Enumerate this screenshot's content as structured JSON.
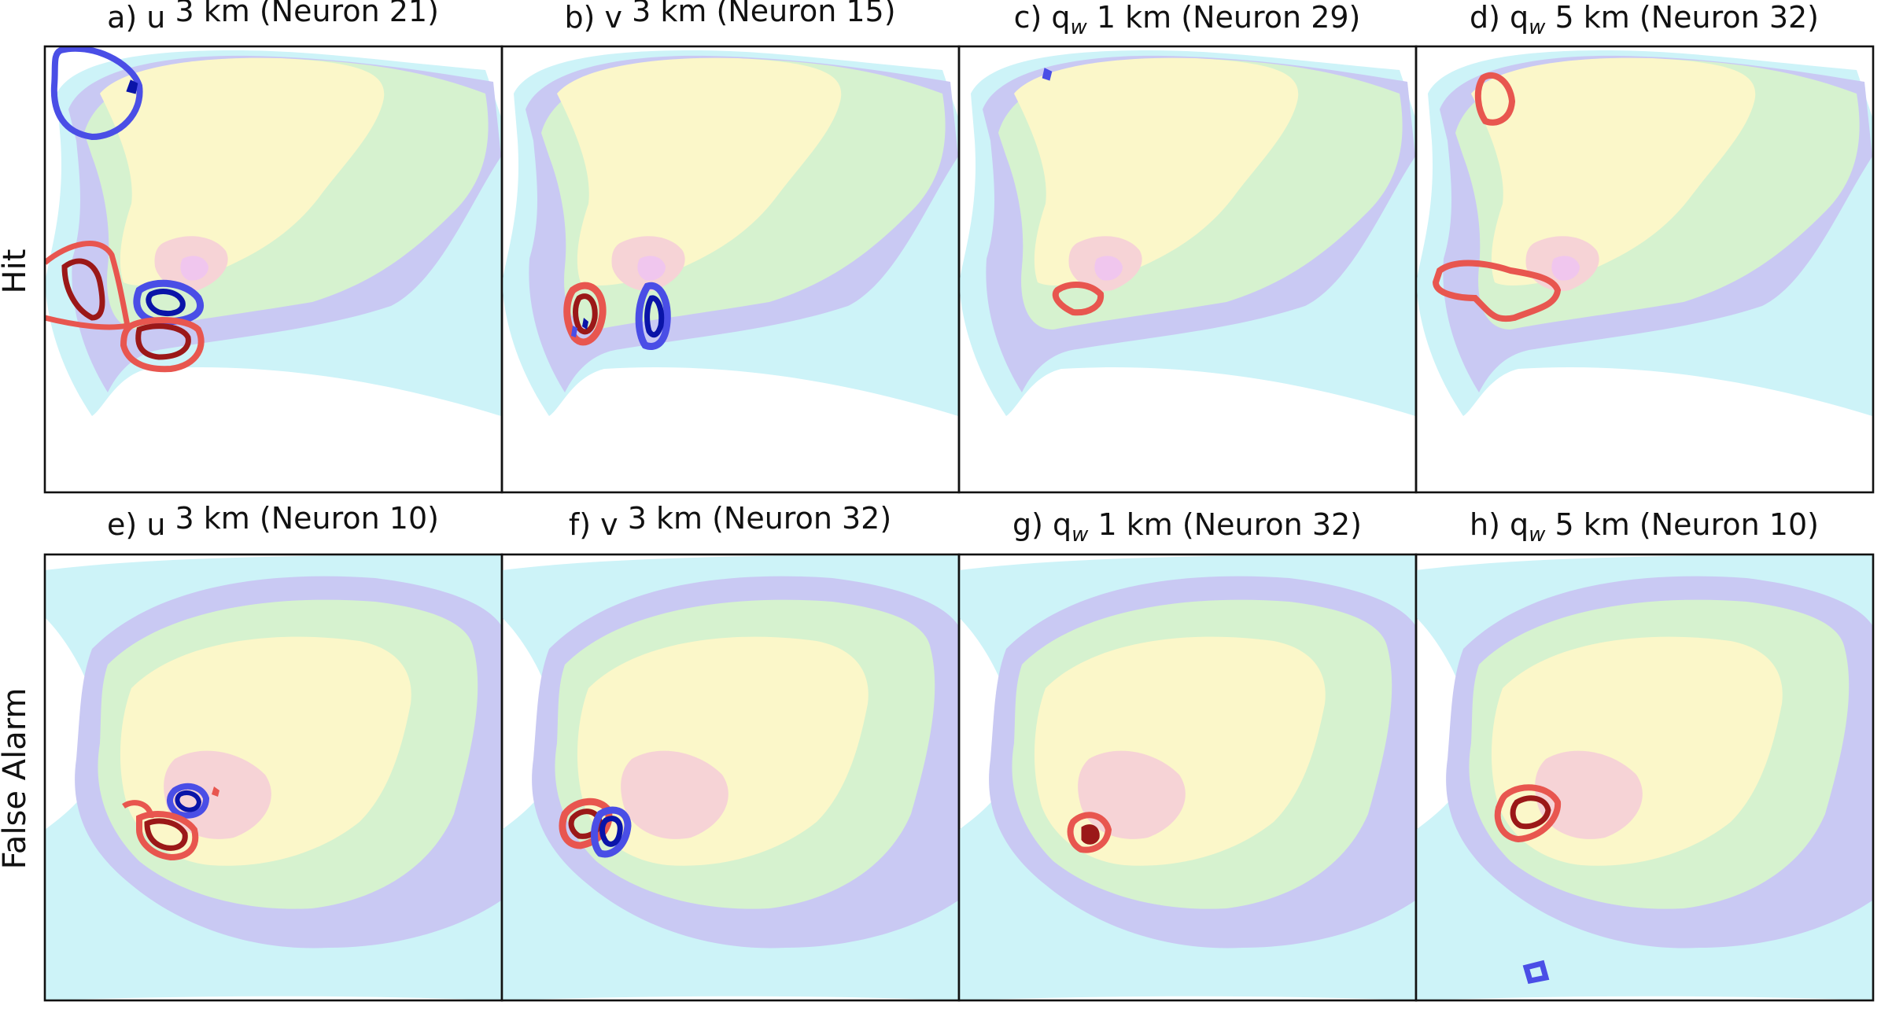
{
  "row_labels": [
    "Hit",
    "False Alarm"
  ],
  "panels": [
    {
      "id": "a",
      "letter": "a)",
      "quantity": "u",
      "subscript": "",
      "level": "3 km",
      "neuron": "(Neuron 21)",
      "case": "hit"
    },
    {
      "id": "b",
      "letter": "b)",
      "quantity": "v",
      "subscript": "",
      "level": "3 km",
      "neuron": "(Neuron 15)",
      "case": "hit"
    },
    {
      "id": "c",
      "letter": "c)",
      "quantity": "q",
      "subscript": "w",
      "level": "1 km",
      "neuron": "(Neuron 29)",
      "case": "hit"
    },
    {
      "id": "d",
      "letter": "d)",
      "quantity": "q",
      "subscript": "w",
      "level": "5 km",
      "neuron": "(Neuron 32)",
      "case": "hit"
    },
    {
      "id": "e",
      "letter": "e)",
      "quantity": "u",
      "subscript": "",
      "level": "3 km",
      "neuron": "(Neuron 10)",
      "case": "false_alarm"
    },
    {
      "id": "f",
      "letter": "f)",
      "quantity": "v",
      "subscript": "",
      "level": "3 km",
      "neuron": "(Neuron 32)",
      "case": "false_alarm"
    },
    {
      "id": "g",
      "letter": "g)",
      "quantity": "q",
      "subscript": "w",
      "level": "1 km",
      "neuron": "(Neuron 32)",
      "case": "false_alarm"
    },
    {
      "id": "h",
      "letter": "h)",
      "quantity": "q",
      "subscript": "w",
      "level": "5 km",
      "neuron": "(Neuron 10)",
      "case": "false_alarm"
    }
  ],
  "colors": {
    "fill_cyan": "#cdf3f8",
    "fill_lavender": "#c9c9f3",
    "fill_green": "#d6f2cf",
    "fill_yellow": "#fbf7c9",
    "fill_pink": "#f6d3d6",
    "fill_magenta": "#f0c6ee",
    "contour_red_light": "#e8564f",
    "contour_red_dark": "#9b1818",
    "contour_blue_light": "#4a4ee6",
    "contour_blue_dark": "#0a14a8",
    "frame": "#111111"
  }
}
